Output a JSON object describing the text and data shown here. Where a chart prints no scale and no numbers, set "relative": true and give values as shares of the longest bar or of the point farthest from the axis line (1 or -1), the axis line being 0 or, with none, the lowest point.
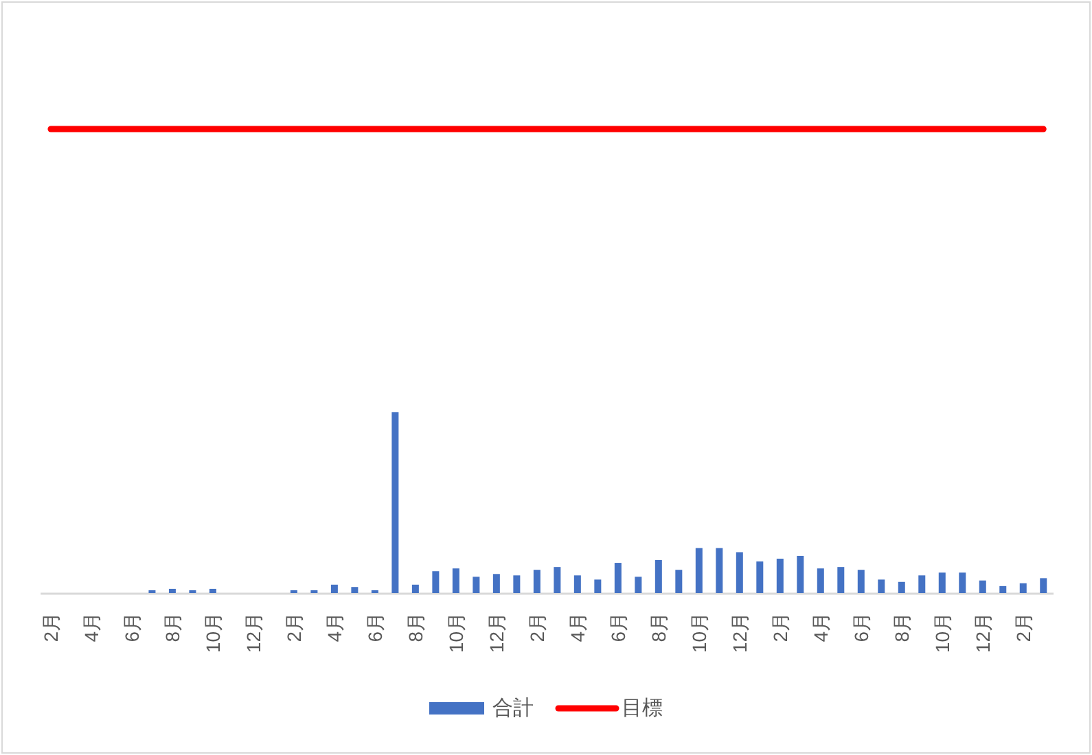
{
  "chart_data": {
    "type": "bar",
    "relative": true,
    "legend": "bottom",
    "categories": [
      "2月",
      null,
      "4月",
      null,
      "6月",
      null,
      "8月",
      null,
      "10月",
      null,
      "12月",
      null,
      "2月",
      null,
      "4月",
      null,
      "6月",
      null,
      "8月",
      null,
      "10月",
      null,
      "12月",
      null,
      "2月",
      null,
      "4月",
      null,
      "6月",
      null,
      "8月",
      null,
      "10月",
      null,
      "12月",
      null,
      "2月",
      null,
      "4月",
      null,
      "6月",
      null,
      "8月",
      null,
      "10月",
      null,
      "12月",
      null,
      "2月",
      null
    ],
    "series": [
      {
        "name": "合計",
        "color": "#4472c4",
        "values": [
          0,
          0,
          0,
          0,
          0,
          0.006,
          0.009,
          0.006,
          0.009,
          0,
          0,
          0,
          0.006,
          0.006,
          0.018,
          0.013,
          0.006,
          0.39,
          0.018,
          0.047,
          0.053,
          0.035,
          0.041,
          0.038,
          0.05,
          0.056,
          0.038,
          0.029,
          0.065,
          0.035,
          0.071,
          0.05,
          0.097,
          0.097,
          0.088,
          0.068,
          0.074,
          0.08,
          0.053,
          0.056,
          0.05,
          0.029,
          0.024,
          0.038,
          0.044,
          0.044,
          0.027,
          0.015,
          0.021,
          0.032
        ]
      },
      {
        "name": "目標",
        "type": "line",
        "color": "#ff0000",
        "values": [
          1,
          1,
          1,
          1,
          1,
          1,
          1,
          1,
          1,
          1,
          1,
          1,
          1,
          1,
          1,
          1,
          1,
          1,
          1,
          1,
          1,
          1,
          1,
          1,
          1,
          1,
          1,
          1,
          1,
          1,
          1,
          1,
          1,
          1,
          1,
          1,
          1,
          1,
          1,
          1,
          1,
          1,
          1,
          1,
          1,
          1,
          1,
          1,
          1,
          1
        ]
      }
    ]
  }
}
